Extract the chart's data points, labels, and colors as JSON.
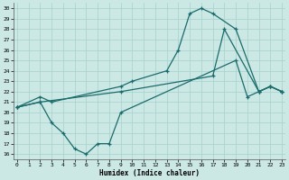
{
  "xlabel": "Humidex (Indice chaleur)",
  "bg_color": "#cce8e5",
  "grid_color": "#aad4d0",
  "line_color": "#1a6b6b",
  "line1_x": [
    0,
    2,
    3,
    9,
    10,
    13,
    14,
    15,
    16,
    17,
    19,
    21,
    22,
    23
  ],
  "line1_y": [
    20.5,
    21.5,
    21.0,
    22.5,
    23.0,
    24.0,
    26.0,
    29.5,
    30.0,
    29.5,
    28.0,
    22.0,
    22.5,
    22.0
  ],
  "line2_x": [
    0,
    2,
    3,
    4,
    5,
    6,
    7,
    8,
    9,
    19,
    20,
    21,
    22,
    23
  ],
  "line2_y": [
    20.5,
    21.0,
    19.0,
    18.0,
    16.5,
    16.0,
    17.0,
    17.0,
    20.0,
    25.0,
    21.5,
    22.0,
    22.5,
    22.0
  ],
  "line3_x": [
    0,
    2,
    9,
    17,
    18,
    21,
    22,
    23
  ],
  "line3_y": [
    20.5,
    21.0,
    22.0,
    23.5,
    28.0,
    22.0,
    22.5,
    22.0
  ],
  "xlim": [
    -0.3,
    23.3
  ],
  "ylim": [
    15.5,
    30.5
  ],
  "xticks": [
    0,
    1,
    2,
    3,
    4,
    5,
    6,
    7,
    8,
    9,
    10,
    11,
    12,
    13,
    14,
    15,
    16,
    17,
    18,
    19,
    20,
    21,
    22,
    23
  ],
  "yticks": [
    16,
    17,
    18,
    19,
    20,
    21,
    22,
    23,
    24,
    25,
    26,
    27,
    28,
    29,
    30
  ]
}
